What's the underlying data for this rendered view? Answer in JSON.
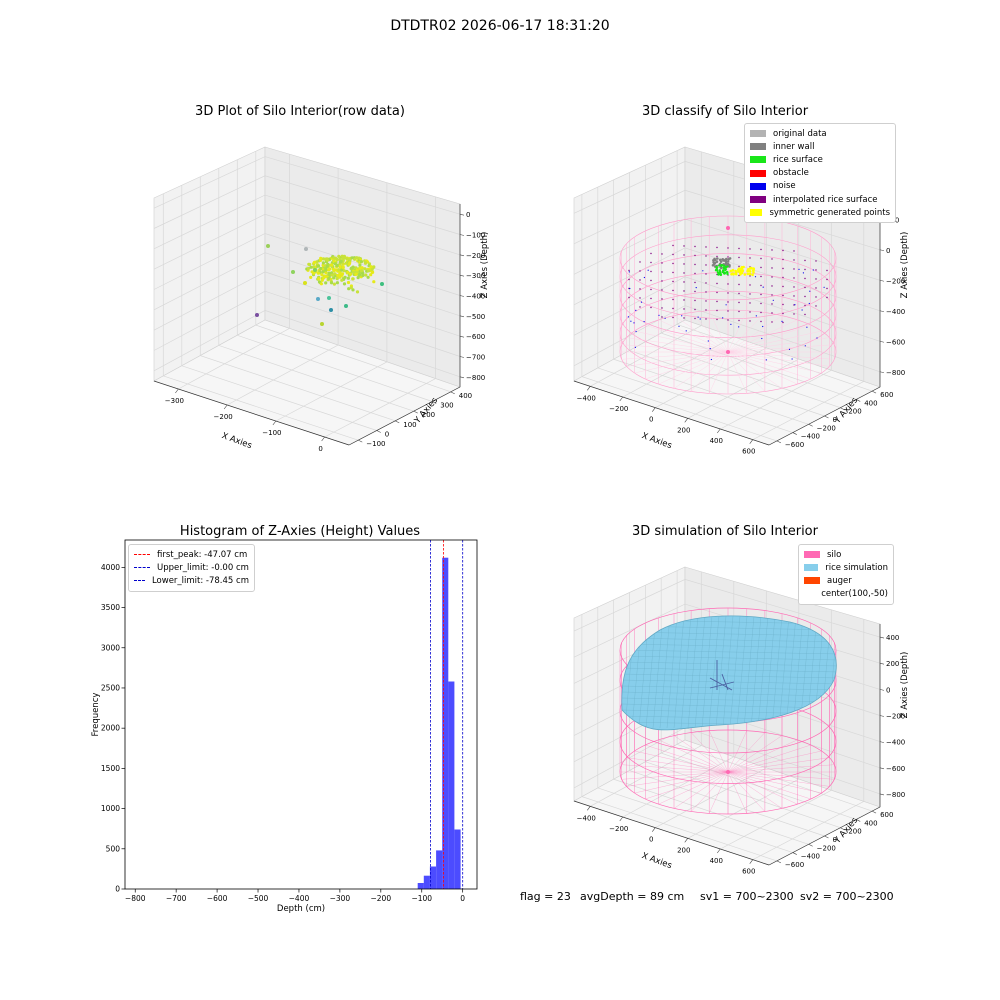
{
  "suptitle": "DTDTR02 2026-06-17 18:31:20",
  "status": {
    "flag": "flag = 23",
    "avg_depth": "avgDepth = 89 cm",
    "sv1": "sv1 = 700~2300",
    "sv2": "sv2 = 700~2300"
  },
  "chart_data": [
    {
      "type": "scatter",
      "title": "3D Plot of Silo Interior(row data)",
      "xlabel": "X Axies",
      "ylabel": "Y Axies",
      "zlabel": "Z Axies (Depth)",
      "x_ticks": [
        "−300",
        "−200",
        "−100",
        "0"
      ],
      "y_ticks": [
        "−100",
        "0",
        "100",
        "200",
        "300",
        "400"
      ],
      "z_ticks": [
        "0",
        "−100",
        "−200",
        "−300",
        "−400",
        "−500",
        "−600",
        "−700",
        "−800"
      ],
      "dense_cluster": {
        "x_range": [
          -150,
          -60
        ],
        "y_range": [
          150,
          300
        ],
        "z_range": [
          -450,
          -300
        ],
        "colors": [
          "#e6ea1a",
          "#c8e23a",
          "#a8db4a"
        ]
      },
      "outliers": [
        {
          "color": "#9bd05a"
        },
        {
          "color": "#b0b6b8"
        },
        {
          "color": "#8fd35e"
        },
        {
          "color": "#d8e21c"
        },
        {
          "color": "#7fd060"
        },
        {
          "color": "#3fbf7f"
        },
        {
          "color": "#5aa9c8"
        },
        {
          "color": "#4cc39a"
        },
        {
          "color": "#3dbb88"
        },
        {
          "color": "#2e8fa6"
        },
        {
          "color": "#7a4fa0"
        },
        {
          "color": "#b8d430"
        }
      ]
    },
    {
      "type": "scatter",
      "title": "3D classify of Silo Interior",
      "xlabel": "X Axies",
      "ylabel": "Y Axies",
      "zlabel": "Z Axies (Depth)",
      "x_ticks": [
        "−400",
        "−200",
        "0",
        "200",
        "400",
        "600"
      ],
      "y_ticks": [
        "−600",
        "−400",
        "−200",
        "0",
        "200",
        "400",
        "600"
      ],
      "z_ticks": [
        "200",
        "0",
        "−200",
        "−400",
        "−600",
        "−800"
      ],
      "legend": [
        {
          "label": "original data",
          "color": "#b3b3b3"
        },
        {
          "label": "inner wall",
          "color": "#808080"
        },
        {
          "label": "rice surface",
          "color": "#19e619"
        },
        {
          "label": "obstacle",
          "color": "#ff0000"
        },
        {
          "label": "noise",
          "color": "#0000ee"
        },
        {
          "label": "interpolated rice surface",
          "color": "#800080"
        },
        {
          "label": "symmetric generated points",
          "color": "#ffff00"
        }
      ]
    },
    {
      "type": "bar",
      "title": "Histogram of Z-Axies (Height) Values",
      "xlabel": "Depth (cm)",
      "ylabel": "Frequency",
      "xlim": [
        -825,
        35
      ],
      "ylim": [
        0,
        4340
      ],
      "x_ticks": [
        -800,
        -700,
        -600,
        -500,
        -400,
        -300,
        -200,
        -100,
        0
      ],
      "y_ticks": [
        0,
        500,
        1000,
        1500,
        2000,
        2500,
        3000,
        3500,
        4000
      ],
      "bar_color": "#0000ff",
      "bins": [
        {
          "x0": -110,
          "x1": -95,
          "value": 75
        },
        {
          "x0": -95,
          "x1": -80,
          "value": 165
        },
        {
          "x0": -80,
          "x1": -65,
          "value": 280
        },
        {
          "x0": -65,
          "x1": -50,
          "value": 480
        },
        {
          "x0": -50,
          "x1": -35,
          "value": 4120
        },
        {
          "x0": -35,
          "x1": -20,
          "value": 2580
        },
        {
          "x0": -20,
          "x1": -5,
          "value": 740
        }
      ],
      "vlines": [
        {
          "label": "first_peak: -47.07 cm",
          "x": -47.07,
          "color": "#ff0000"
        },
        {
          "label": "Upper_limit: -0.00 cm",
          "x": 0,
          "color": "#0000cc"
        },
        {
          "label": "Lower_limit: -78.45 cm",
          "x": -78.45,
          "color": "#0000cc"
        }
      ]
    },
    {
      "type": "area",
      "title": "3D simulation of Silo Interior",
      "xlabel": "X Axies",
      "ylabel": "Y Axies",
      "zlabel": "Z Axies (Depth)",
      "x_ticks": [
        "−400",
        "−200",
        "0",
        "200",
        "400",
        "600"
      ],
      "y_ticks": [
        "−600",
        "−400",
        "−200",
        "0",
        "200",
        "400",
        "600"
      ],
      "z_ticks": [
        "400",
        "200",
        "0",
        "−200",
        "−400",
        "−600",
        "−800"
      ],
      "legend": [
        {
          "label": "silo",
          "color": "#ff69b4"
        },
        {
          "label": "rice simulation",
          "color": "#87ceeb"
        },
        {
          "label": "auger",
          "color": "#ff4500"
        },
        {
          "label": "center(100,-50)",
          "color": ""
        }
      ]
    }
  ]
}
